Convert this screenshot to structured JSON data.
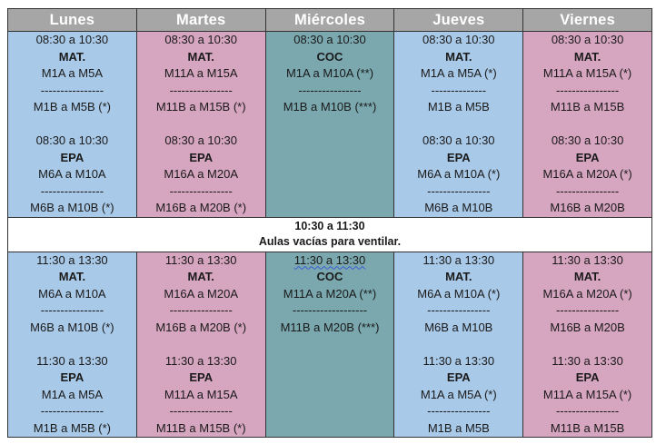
{
  "days": [
    "Lunes",
    "Martes",
    "Miércoles",
    "Jueves",
    "Viernes"
  ],
  "morning": [
    [
      "08:30 a 10:30",
      "MAT.",
      "M1A a M5A",
      "----------------",
      "M1B a M5B (*)",
      "",
      "08:30 a 10:30",
      "EPA",
      "M6A a M10A",
      "----------------",
      "M6B a M10B (*)"
    ],
    [
      "08:30 a 10:30",
      "MAT.",
      "M11A a M15A",
      "----------------",
      "M11B a M15B (*)",
      "",
      "08:30 a 10:30",
      "EPA",
      "M16A a M20A",
      "----------------",
      "M16B a M20B (*)"
    ],
    [
      "08:30 a 10:30",
      "COC",
      "M1A a M10A (**)",
      "----------------",
      "M1B a M10B (***)",
      "",
      "",
      "",
      "",
      "",
      ""
    ],
    [
      "08:30 a 10:30",
      "MAT.",
      "M1A a M5A (*)",
      "--------------",
      "M1B a M5B",
      "",
      "08:30 a 10:30",
      "EPA",
      "M6A a M10A (*)",
      "----------------",
      "M6B a M10B"
    ],
    [
      "08:30 a 10:30",
      "MAT.",
      "M11A a M15A (*)",
      "----------------",
      "M11B a M15B",
      "",
      "08:30 a 10:30",
      "EPA",
      "M16A a M20A (*)",
      "----------------",
      "M16B a M20B"
    ]
  ],
  "break": {
    "time": "10:30 a 11:30",
    "note": "Aulas vacías para ventilar."
  },
  "afternoon": [
    [
      "11:30 a 13:30",
      "MAT.",
      "M6A a M10A",
      "----------------",
      "M6B a M10B (*)",
      "",
      "11:30 a 13:30",
      "EPA",
      "M1A a M5A",
      "----------------",
      "M1B a M5B (*)"
    ],
    [
      "11:30 a 13:30",
      "MAT.",
      "M16A a M20A",
      "----------------",
      "M16B a M20B (*)",
      "",
      "11:30 a 13:30",
      "EPA",
      "M11A a M15A",
      "----------------",
      "M11B a M15B (*)"
    ],
    [
      "11:30 a  13:30",
      "COC",
      "M11A a M20A (**)",
      "-------------------",
      "M11B a M20B (***)",
      "",
      "",
      "",
      "",
      "",
      ""
    ],
    [
      "11:30 a 13:30",
      "MAT.",
      "M6A a M10A (*)",
      "----------------",
      "M6B a M10B",
      "",
      "11:30 a 13:30",
      "EPA",
      "M1A a M5A (*)",
      "----------------",
      "M1B a M5B"
    ],
    [
      "11:30 a 13:30",
      "MAT.",
      "M16A a M20A (*)",
      "----------------",
      "M16B a M20B",
      "",
      "11:30 a 13:30",
      "EPA",
      "M11A a M15A (*)",
      "----------------",
      "M11B a M15B"
    ]
  ],
  "colors": {
    "header_bg": "#a6a6a6",
    "blue": "#a9c9e8",
    "pink": "#d6a5bf",
    "teal": "#7aa8ae"
  }
}
